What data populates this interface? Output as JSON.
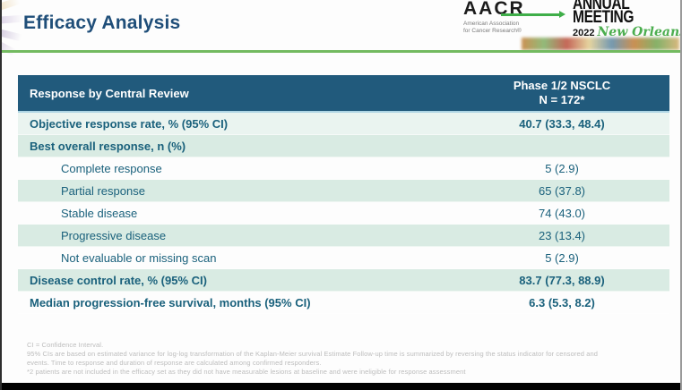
{
  "slide": {
    "title": "Efficacy Analysis"
  },
  "logo": {
    "org_acronym": "AACR",
    "org_name_line1": "American Association",
    "org_name_line2": "for Cancer Research®",
    "event_line1": "ANNUAL",
    "event_line2": "MEETING",
    "event_year": "2022",
    "event_city": "New Orleans"
  },
  "table": {
    "header": {
      "col1": "Response by Central Review",
      "col2_line1": "Phase 1/2 NSCLC",
      "col2_line2": "N = 172*"
    },
    "rows": [
      {
        "label": "Objective response rate, % (95% CI)",
        "value": "40.7 (33.3, 48.4)"
      },
      {
        "label": "Best overall response, n (%)",
        "value": ""
      },
      {
        "label": "Complete response",
        "value": "5 (2.9)"
      },
      {
        "label": "Partial response",
        "value": "65 (37.8)"
      },
      {
        "label": "Stable disease",
        "value": "74 (43.0)"
      },
      {
        "label": "Progressive disease",
        "value": "23 (13.4)"
      },
      {
        "label": "Not evaluable or missing scan",
        "value": "5 (2.9)"
      },
      {
        "label": "Disease control rate, % (95% CI)",
        "value": "83.7 (77.3, 88.9)"
      },
      {
        "label": "Median progression-free survival, months (95% CI)",
        "value": "6.3 (5.3, 8.2)"
      }
    ]
  },
  "footnotes": [
    "CI = Confidence Interval.",
    "95% CIs are based on estimated variance for log-log transformation of the Kaplan-Meier survival Estimate Follow-up time is summarized by reversing the status indicator for censored and",
    "events. Time to response and duration of response are calculated among confirmed responders.",
    "*2 patients are not included in the efficacy set as they did not have measurable lesions at baseline and were ineligible for response assessment"
  ],
  "colors": {
    "header_bg": "#215a7c",
    "header_separator": "#aed5e4",
    "row_mint": "#d9ebe3",
    "row_mint_light": "#eaf4f0",
    "text_teal": "#1a617c",
    "title_blue": "#1f4e79",
    "accent_green": "#73ba60",
    "logo_green": "#3fae49",
    "footnote_gray": "#bdbdbd"
  }
}
